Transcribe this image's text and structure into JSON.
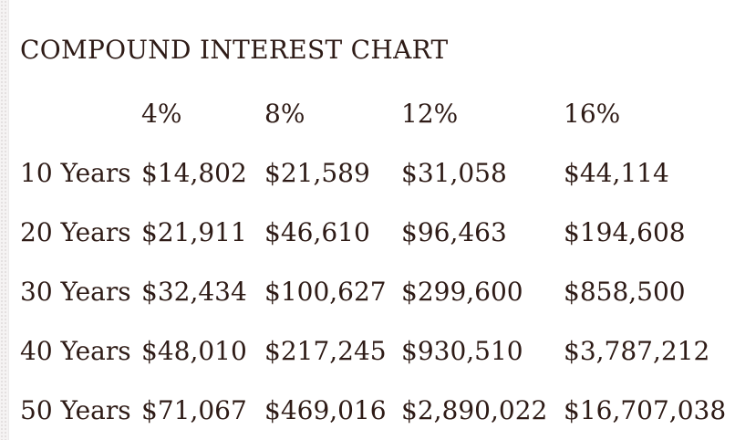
{
  "page": {
    "background_color": "#ffffff",
    "text_color": "#2e1b16",
    "edge_strip_color": "#f5f3f3"
  },
  "title": "COMPOUND INTEREST CHART",
  "table": {
    "column_headers": [
      "",
      "4%",
      "8%",
      "12%",
      "16%"
    ],
    "rows": [
      {
        "label": "10 Years",
        "values": [
          "$14,802",
          "$21,589",
          "$31,058",
          "$44,114"
        ]
      },
      {
        "label": "20 Years",
        "values": [
          "$21,911",
          "$46,610",
          "$96,463",
          "$194,608"
        ]
      },
      {
        "label": "30 Years",
        "values": [
          "$32,434",
          "$100,627",
          "$299,600",
          "$858,500"
        ]
      },
      {
        "label": "40 Years",
        "values": [
          "$48,010",
          "$217,245",
          "$930,510",
          "$3,787,212"
        ]
      },
      {
        "label": "50 Years",
        "values": [
          "$71,067",
          "$469,016",
          "$2,890,022",
          "$16,707,038"
        ]
      }
    ]
  },
  "chart_data": {
    "type": "table",
    "title": "COMPOUND INTEREST CHART",
    "categories": [
      "10 Years",
      "20 Years",
      "30 Years",
      "40 Years",
      "50 Years"
    ],
    "series": [
      {
        "name": "4%",
        "values": [
          14802,
          21911,
          32434,
          48010,
          71067
        ]
      },
      {
        "name": "8%",
        "values": [
          21589,
          46610,
          100627,
          217245,
          469016
        ]
      },
      {
        "name": "12%",
        "values": [
          31058,
          96463,
          299600,
          930510,
          2890022
        ]
      },
      {
        "name": "16%",
        "values": [
          44114,
          194608,
          858500,
          3787212,
          16707038
        ]
      }
    ]
  }
}
